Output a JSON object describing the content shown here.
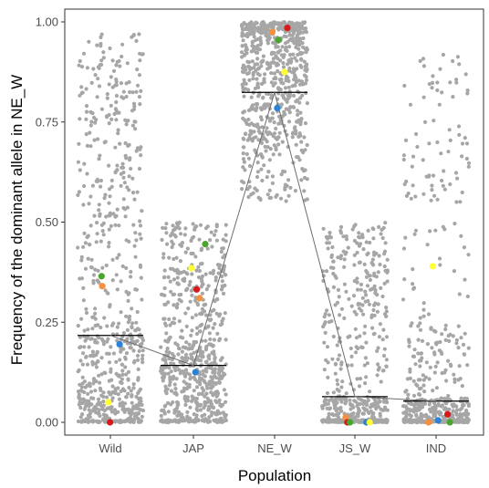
{
  "chart_data": {
    "type": "scatter",
    "title": "",
    "xlabel": "Population",
    "ylabel": "Frequency of the dominant allele in NE_W",
    "categories": [
      "Wild",
      "JAP",
      "NE_W",
      "JS_W",
      "IND"
    ],
    "ylim": [
      0,
      1
    ],
    "yticks": [
      "0.00",
      "0.25",
      "0.50",
      "0.75",
      "1.00"
    ],
    "ytick_values": [
      0,
      0.25,
      0.5,
      0.75,
      1.0
    ],
    "grid": false,
    "legend": "none",
    "colors": {
      "background_points": "#a6a6a6",
      "mean_line": "#000000",
      "connector_line": "#6e6e6e",
      "axis": "#333333",
      "green": "#4aa52e",
      "orange": "#f5913e",
      "red": "#d7191c",
      "yellow": "#ffff33",
      "blue": "#2b83d6"
    },
    "background_distributions": [
      {
        "category": "Wild",
        "count": 700,
        "segments": [
          [
            0.0,
            0.006,
            0.09
          ],
          [
            0.006,
            0.08,
            0.23
          ],
          [
            0.08,
            0.25,
            0.25
          ],
          [
            0.25,
            0.5,
            0.14
          ],
          [
            0.5,
            0.75,
            0.14
          ],
          [
            0.75,
            0.97,
            0.15
          ]
        ]
      },
      {
        "category": "JAP",
        "count": 700,
        "segments": [
          [
            0.0,
            0.006,
            0.12
          ],
          [
            0.006,
            0.1,
            0.24
          ],
          [
            0.1,
            0.2,
            0.28
          ],
          [
            0.2,
            0.35,
            0.18
          ],
          [
            0.35,
            0.5,
            0.18
          ]
        ]
      },
      {
        "category": "NE_W",
        "count": 700,
        "segments": [
          [
            0.55,
            0.7,
            0.13
          ],
          [
            0.7,
            0.85,
            0.3
          ],
          [
            0.85,
            0.97,
            0.33
          ],
          [
            0.97,
            1.0,
            0.24
          ]
        ]
      },
      {
        "category": "JS_W",
        "count": 600,
        "segments": [
          [
            0.0,
            0.006,
            0.35
          ],
          [
            0.006,
            0.06,
            0.22
          ],
          [
            0.06,
            0.25,
            0.15
          ],
          [
            0.25,
            0.5,
            0.28
          ]
        ]
      },
      {
        "category": "IND",
        "count": 600,
        "segments": [
          [
            0.0,
            0.006,
            0.35
          ],
          [
            0.006,
            0.06,
            0.3
          ],
          [
            0.06,
            0.25,
            0.17
          ],
          [
            0.25,
            0.5,
            0.05
          ],
          [
            0.55,
            0.72,
            0.08
          ],
          [
            0.72,
            0.92,
            0.05
          ]
        ]
      }
    ],
    "means": [
      {
        "category": "Wild",
        "value": 0.217
      },
      {
        "category": "JAP",
        "value": 0.142
      },
      {
        "category": "NE_W",
        "value": 0.824
      },
      {
        "category": "JS_W",
        "value": 0.064
      },
      {
        "category": "IND",
        "value": 0.053
      }
    ],
    "connector": [
      {
        "category": "Wild",
        "offset": 0.0,
        "value": 0.217
      },
      {
        "category": "JAP",
        "offset": 0.0,
        "value": 0.142
      },
      {
        "category": "NE_W",
        "offset": 0.0,
        "value": 0.824
      },
      {
        "category": "JS_W",
        "offset": 0.0,
        "value": 0.064
      },
      {
        "category": "IND",
        "offset": 0.0,
        "value": 0.053
      }
    ],
    "highlighted_points": [
      {
        "category": "Wild",
        "offset": -0.27,
        "value": 0.365,
        "color": "green"
      },
      {
        "category": "Wild",
        "offset": -0.25,
        "value": 0.34,
        "color": "orange"
      },
      {
        "category": "Wild",
        "offset": 0.28,
        "value": 0.195,
        "color": "blue"
      },
      {
        "category": "Wild",
        "offset": -0.06,
        "value": 0.05,
        "color": "yellow"
      },
      {
        "category": "Wild",
        "offset": -0.01,
        "value": 0.0,
        "color": "red"
      },
      {
        "category": "JAP",
        "offset": 0.36,
        "value": 0.445,
        "color": "green"
      },
      {
        "category": "JAP",
        "offset": -0.06,
        "value": 0.385,
        "color": "yellow"
      },
      {
        "category": "JAP",
        "offset": 0.1,
        "value": 0.332,
        "color": "red"
      },
      {
        "category": "JAP",
        "offset": 0.19,
        "value": 0.31,
        "color": "orange"
      },
      {
        "category": "JAP",
        "offset": 0.06,
        "value": 0.125,
        "color": "blue"
      },
      {
        "category": "NE_W",
        "offset": -0.07,
        "value": 0.975,
        "color": "orange"
      },
      {
        "category": "NE_W",
        "offset": 0.39,
        "value": 0.985,
        "color": "red"
      },
      {
        "category": "NE_W",
        "offset": 0.12,
        "value": 0.955,
        "color": "green"
      },
      {
        "category": "NE_W",
        "offset": 0.3,
        "value": 0.875,
        "color": "yellow"
      },
      {
        "category": "NE_W",
        "offset": 0.08,
        "value": 0.785,
        "color": "blue"
      },
      {
        "category": "JS_W",
        "offset": -0.28,
        "value": 0.012,
        "color": "orange"
      },
      {
        "category": "JS_W",
        "offset": -0.23,
        "value": 0.0,
        "color": "red"
      },
      {
        "category": "JS_W",
        "offset": -0.15,
        "value": 0.0,
        "color": "green"
      },
      {
        "category": "JS_W",
        "offset": 0.35,
        "value": 0.0,
        "color": "blue"
      },
      {
        "category": "JS_W",
        "offset": 0.45,
        "value": 0.0,
        "color": "yellow"
      },
      {
        "category": "IND",
        "offset": -0.1,
        "value": 0.39,
        "color": "yellow"
      },
      {
        "category": "IND",
        "offset": 0.35,
        "value": 0.02,
        "color": "red"
      },
      {
        "category": "IND",
        "offset": -0.23,
        "value": 0.0,
        "color": "orange"
      },
      {
        "category": "IND",
        "offset": 0.06,
        "value": 0.005,
        "color": "blue"
      },
      {
        "category": "IND",
        "offset": 0.42,
        "value": 0.0,
        "color": "green"
      }
    ]
  }
}
